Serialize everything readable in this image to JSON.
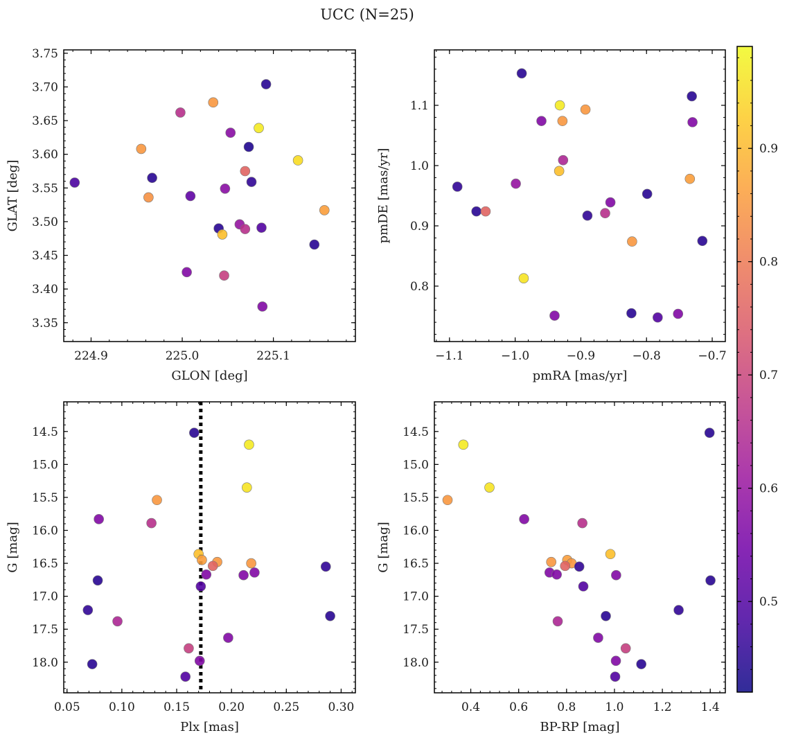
{
  "figure": {
    "title": "UCC (N=25)"
  },
  "chart_data": [
    {
      "type": "scatter",
      "name": "galactic-coordinates",
      "xlabel": "GLON [deg]",
      "ylabel": "GLAT [deg]",
      "xlim": [
        224.87,
        225.19
      ],
      "ylim": [
        3.322,
        3.755
      ],
      "xticks": [
        224.9,
        225.0,
        225.1
      ],
      "xtick_labels": [
        "224.9",
        "225.0",
        "225.1"
      ],
      "yticks": [
        3.35,
        3.4,
        3.45,
        3.5,
        3.55,
        3.6,
        3.65,
        3.7,
        3.75
      ],
      "ytick_labels": [
        "3.35",
        "3.40",
        "3.45",
        "3.50",
        "3.55",
        "3.60",
        "3.65",
        "3.70",
        "3.75"
      ],
      "points": [
        {
          "x": 225.092,
          "y": 3.704,
          "c": 0.45
        },
        {
          "x": 225.034,
          "y": 3.677,
          "c": 0.85
        },
        {
          "x": 224.998,
          "y": 3.662,
          "c": 0.66
        },
        {
          "x": 225.053,
          "y": 3.632,
          "c": 0.58
        },
        {
          "x": 225.084,
          "y": 3.639,
          "c": 0.97
        },
        {
          "x": 225.073,
          "y": 3.611,
          "c": 0.44
        },
        {
          "x": 224.955,
          "y": 3.608,
          "c": 0.85
        },
        {
          "x": 225.127,
          "y": 3.591,
          "c": 0.95
        },
        {
          "x": 224.882,
          "y": 3.558,
          "c": 0.49
        },
        {
          "x": 224.967,
          "y": 3.565,
          "c": 0.45
        },
        {
          "x": 225.069,
          "y": 3.575,
          "c": 0.76
        },
        {
          "x": 225.076,
          "y": 3.559,
          "c": 0.46
        },
        {
          "x": 225.047,
          "y": 3.549,
          "c": 0.58
        },
        {
          "x": 225.009,
          "y": 3.538,
          "c": 0.52
        },
        {
          "x": 224.963,
          "y": 3.536,
          "c": 0.84
        },
        {
          "x": 225.156,
          "y": 3.517,
          "c": 0.86
        },
        {
          "x": 225.04,
          "y": 3.49,
          "c": 0.45
        },
        {
          "x": 225.063,
          "y": 3.496,
          "c": 0.6
        },
        {
          "x": 225.069,
          "y": 3.489,
          "c": 0.66
        },
        {
          "x": 225.087,
          "y": 3.491,
          "c": 0.5
        },
        {
          "x": 225.044,
          "y": 3.481,
          "c": 0.91
        },
        {
          "x": 225.145,
          "y": 3.466,
          "c": 0.45
        },
        {
          "x": 225.005,
          "y": 3.425,
          "c": 0.57
        },
        {
          "x": 225.046,
          "y": 3.42,
          "c": 0.69
        },
        {
          "x": 225.088,
          "y": 3.374,
          "c": 0.57
        }
      ]
    },
    {
      "type": "scatter",
      "name": "proper-motions",
      "xlabel": "pmRA [mas/yr]",
      "ylabel": "pmDE [mas/yr]",
      "xlim": [
        -1.123,
        -0.68
      ],
      "ylim": [
        0.708,
        1.192
      ],
      "xticks": [
        -1.1,
        -1.0,
        -0.9,
        -0.8,
        -0.7
      ],
      "xtick_labels": [
        "−1.1",
        "−1.0",
        "−0.9",
        "−0.8",
        "−0.7"
      ],
      "yticks": [
        0.8,
        0.9,
        1.0,
        1.1
      ],
      "ytick_labels": [
        "0.8",
        "0.9",
        "1.0",
        "1.1"
      ],
      "points": [
        {
          "x": -0.99,
          "y": 1.153,
          "c": 0.45
        },
        {
          "x": -0.932,
          "y": 1.1,
          "c": 0.97
        },
        {
          "x": -0.893,
          "y": 1.093,
          "c": 0.85
        },
        {
          "x": -0.731,
          "y": 1.115,
          "c": 0.45
        },
        {
          "x": -0.96,
          "y": 1.074,
          "c": 0.57
        },
        {
          "x": -0.928,
          "y": 1.074,
          "c": 0.85
        },
        {
          "x": -0.73,
          "y": 1.072,
          "c": 0.57
        },
        {
          "x": -0.927,
          "y": 1.009,
          "c": 0.64
        },
        {
          "x": -0.933,
          "y": 0.991,
          "c": 0.91
        },
        {
          "x": -0.734,
          "y": 0.978,
          "c": 0.86
        },
        {
          "x": -1.088,
          "y": 0.965,
          "c": 0.46
        },
        {
          "x": -0.999,
          "y": 0.97,
          "c": 0.6
        },
        {
          "x": -0.799,
          "y": 0.953,
          "c": 0.45
        },
        {
          "x": -0.855,
          "y": 0.939,
          "c": 0.57
        },
        {
          "x": -1.059,
          "y": 0.924,
          "c": 0.45
        },
        {
          "x": -1.045,
          "y": 0.924,
          "c": 0.76
        },
        {
          "x": -0.89,
          "y": 0.917,
          "c": 0.46
        },
        {
          "x": -0.863,
          "y": 0.921,
          "c": 0.66
        },
        {
          "x": -0.822,
          "y": 0.874,
          "c": 0.85
        },
        {
          "x": -0.715,
          "y": 0.875,
          "c": 0.45
        },
        {
          "x": -0.987,
          "y": 0.813,
          "c": 0.96
        },
        {
          "x": -0.94,
          "y": 0.751,
          "c": 0.57
        },
        {
          "x": -0.823,
          "y": 0.755,
          "c": 0.45
        },
        {
          "x": -0.783,
          "y": 0.748,
          "c": 0.5
        },
        {
          "x": -0.752,
          "y": 0.754,
          "c": 0.57
        }
      ]
    },
    {
      "type": "scatter",
      "name": "parallax-magnitude",
      "xlabel": "Plx [mas]",
      "ylabel": "G [mag]",
      "xlim": [
        0.047,
        0.313
      ],
      "ylim": [
        18.465,
        14.05
      ],
      "y_inverted": true,
      "xticks": [
        0.05,
        0.1,
        0.15,
        0.2,
        0.25,
        0.3
      ],
      "xtick_labels": [
        "0.05",
        "0.10",
        "0.15",
        "0.20",
        "0.25",
        "0.30"
      ],
      "yticks": [
        14.5,
        15.0,
        15.5,
        16.0,
        16.5,
        17.0,
        17.5,
        18.0
      ],
      "ytick_labels": [
        "14.5",
        "15.0",
        "15.5",
        "16.0",
        "16.5",
        "17.0",
        "17.5",
        "18.0"
      ],
      "reference_line": {
        "x": 0.172,
        "style": "dotted",
        "color": "#000000"
      },
      "points": [
        {
          "x": 0.166,
          "y": 14.52,
          "c": 0.45
        },
        {
          "x": 0.216,
          "y": 14.7,
          "c": 0.97
        },
        {
          "x": 0.214,
          "y": 15.35,
          "c": 0.96
        },
        {
          "x": 0.132,
          "y": 15.54,
          "c": 0.85
        },
        {
          "x": 0.079,
          "y": 15.83,
          "c": 0.57
        },
        {
          "x": 0.127,
          "y": 15.89,
          "c": 0.66
        },
        {
          "x": 0.17,
          "y": 16.36,
          "c": 0.91
        },
        {
          "x": 0.173,
          "y": 16.45,
          "c": 0.86
        },
        {
          "x": 0.187,
          "y": 16.48,
          "c": 0.85
        },
        {
          "x": 0.218,
          "y": 16.5,
          "c": 0.85
        },
        {
          "x": 0.183,
          "y": 16.54,
          "c": 0.76
        },
        {
          "x": 0.286,
          "y": 16.55,
          "c": 0.46
        },
        {
          "x": 0.221,
          "y": 16.64,
          "c": 0.57
        },
        {
          "x": 0.177,
          "y": 16.67,
          "c": 0.57
        },
        {
          "x": 0.211,
          "y": 16.68,
          "c": 0.57
        },
        {
          "x": 0.078,
          "y": 16.76,
          "c": 0.45
        },
        {
          "x": 0.172,
          "y": 16.85,
          "c": 0.5
        },
        {
          "x": 0.069,
          "y": 17.21,
          "c": 0.46
        },
        {
          "x": 0.29,
          "y": 17.3,
          "c": 0.45
        },
        {
          "x": 0.096,
          "y": 17.38,
          "c": 0.64
        },
        {
          "x": 0.197,
          "y": 17.63,
          "c": 0.57
        },
        {
          "x": 0.161,
          "y": 17.79,
          "c": 0.69
        },
        {
          "x": 0.171,
          "y": 17.98,
          "c": 0.57
        },
        {
          "x": 0.073,
          "y": 18.03,
          "c": 0.45
        },
        {
          "x": 0.158,
          "y": 18.22,
          "c": 0.5
        }
      ]
    },
    {
      "type": "scatter",
      "name": "color-magnitude",
      "xlabel": "BP-RP [mag]",
      "ylabel": "G [mag]",
      "xlim": [
        0.248,
        1.463
      ],
      "ylim": [
        18.465,
        14.05
      ],
      "y_inverted": true,
      "xticks": [
        0.4,
        0.6,
        0.8,
        1.0,
        1.2,
        1.4
      ],
      "xtick_labels": [
        "0.4",
        "0.6",
        "0.8",
        "1.0",
        "1.2",
        "1.4"
      ],
      "yticks": [
        14.5,
        15.0,
        15.5,
        16.0,
        16.5,
        17.0,
        17.5,
        18.0
      ],
      "ytick_labels": [
        "14.5",
        "15.0",
        "15.5",
        "16.0",
        "16.5",
        "17.0",
        "17.5",
        "18.0"
      ],
      "points": [
        {
          "x": 1.397,
          "y": 14.52,
          "c": 0.45
        },
        {
          "x": 0.369,
          "y": 14.7,
          "c": 0.97
        },
        {
          "x": 0.478,
          "y": 15.35,
          "c": 0.96
        },
        {
          "x": 0.303,
          "y": 15.54,
          "c": 0.85
        },
        {
          "x": 0.623,
          "y": 15.83,
          "c": 0.57
        },
        {
          "x": 0.866,
          "y": 15.89,
          "c": 0.66
        },
        {
          "x": 0.983,
          "y": 16.36,
          "c": 0.91
        },
        {
          "x": 0.803,
          "y": 16.45,
          "c": 0.86
        },
        {
          "x": 0.736,
          "y": 16.48,
          "c": 0.85
        },
        {
          "x": 0.821,
          "y": 16.5,
          "c": 0.85
        },
        {
          "x": 0.794,
          "y": 16.54,
          "c": 0.76
        },
        {
          "x": 0.853,
          "y": 16.55,
          "c": 0.46
        },
        {
          "x": 0.729,
          "y": 16.64,
          "c": 0.57
        },
        {
          "x": 0.759,
          "y": 16.67,
          "c": 0.57
        },
        {
          "x": 1.007,
          "y": 16.68,
          "c": 0.57
        },
        {
          "x": 1.401,
          "y": 16.76,
          "c": 0.45
        },
        {
          "x": 0.87,
          "y": 16.85,
          "c": 0.5
        },
        {
          "x": 1.268,
          "y": 17.21,
          "c": 0.46
        },
        {
          "x": 0.964,
          "y": 17.3,
          "c": 0.45
        },
        {
          "x": 0.763,
          "y": 17.38,
          "c": 0.64
        },
        {
          "x": 0.932,
          "y": 17.63,
          "c": 0.57
        },
        {
          "x": 1.047,
          "y": 17.79,
          "c": 0.69
        },
        {
          "x": 1.006,
          "y": 17.98,
          "c": 0.57
        },
        {
          "x": 1.112,
          "y": 18.03,
          "c": 0.45
        },
        {
          "x": 1.003,
          "y": 18.22,
          "c": 0.5
        }
      ]
    }
  ],
  "colorbar": {
    "colormap": "plasma",
    "range": [
      0.42,
      0.99
    ],
    "ticks": [
      0.5,
      0.6,
      0.7,
      0.8,
      0.9
    ],
    "tick_labels": [
      "0.5",
      "0.6",
      "0.7",
      "0.8",
      "0.9"
    ],
    "stops": [
      "#0d0887",
      "#46039f",
      "#7201a8",
      "#9c179e",
      "#bd3786",
      "#d8576b",
      "#ed7953",
      "#fb9f3a",
      "#fdca26",
      "#f0f921"
    ]
  },
  "style": {
    "frame_color": "#000000",
    "marker_edge_color": "#777777",
    "marker_alpha": 0.8
  }
}
